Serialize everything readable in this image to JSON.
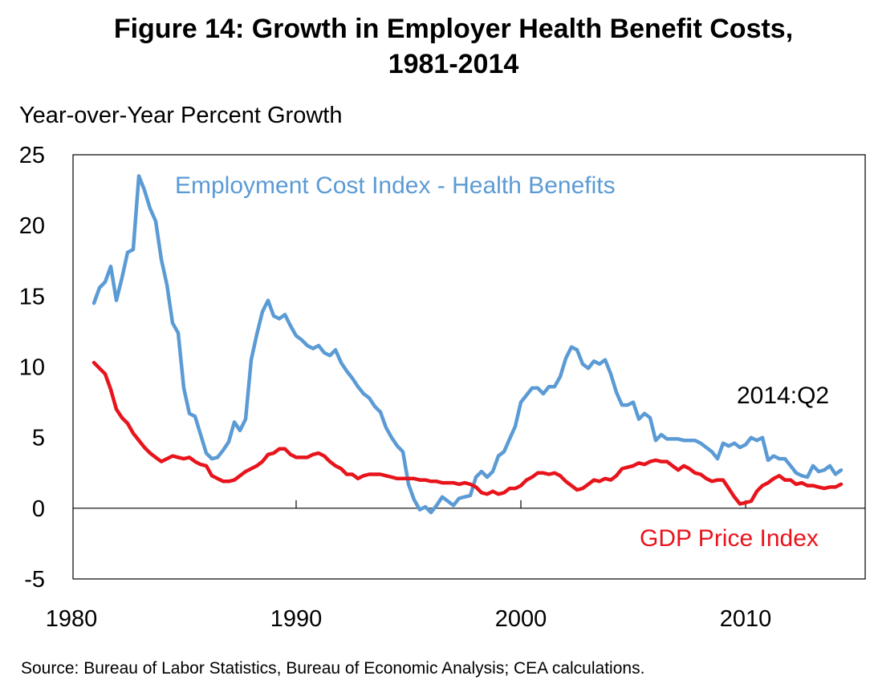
{
  "title_line1": "Figure 14: Growth in Employer Health Benefit Costs,",
  "title_line2": "1981-2014",
  "source": "Source: Bureau of Labor Statistics, Bureau of Economic Analysis; CEA calculations.",
  "colors": {
    "eci": "#5b9bd5",
    "gdp": "#e8141c"
  },
  "chart_data": {
    "type": "line",
    "ylabel": "Year-over-Year Percent Growth",
    "xlim": [
      1980,
      2015
    ],
    "ylim": [
      -5,
      25
    ],
    "x_ticks": [
      1980,
      1990,
      2000,
      2010
    ],
    "y_ticks": [
      25,
      20,
      15,
      10,
      5,
      0,
      -5
    ],
    "annotation": "2014:Q2",
    "series": [
      {
        "name": "Employment Cost Index - Health Benefits",
        "points": [
          [
            1981.0,
            14.5
          ],
          [
            1981.25,
            15.6
          ],
          [
            1981.5,
            16.0
          ],
          [
            1981.75,
            17.1
          ],
          [
            1982.0,
            14.7
          ],
          [
            1982.25,
            16.3
          ],
          [
            1982.5,
            18.1
          ],
          [
            1982.75,
            18.3
          ],
          [
            1983.0,
            23.5
          ],
          [
            1983.25,
            22.5
          ],
          [
            1983.5,
            21.2
          ],
          [
            1983.75,
            20.3
          ],
          [
            1984.0,
            17.6
          ],
          [
            1984.25,
            15.8
          ],
          [
            1984.5,
            13.1
          ],
          [
            1984.75,
            12.4
          ],
          [
            1985.0,
            8.5
          ],
          [
            1985.25,
            6.7
          ],
          [
            1985.5,
            6.5
          ],
          [
            1985.75,
            5.2
          ],
          [
            1986.0,
            3.9
          ],
          [
            1986.25,
            3.5
          ],
          [
            1986.5,
            3.6
          ],
          [
            1986.75,
            4.1
          ],
          [
            1987.0,
            4.7
          ],
          [
            1987.25,
            6.1
          ],
          [
            1987.5,
            5.5
          ],
          [
            1987.75,
            6.3
          ],
          [
            1988.0,
            10.5
          ],
          [
            1988.25,
            12.3
          ],
          [
            1988.5,
            13.9
          ],
          [
            1988.75,
            14.7
          ],
          [
            1989.0,
            13.6
          ],
          [
            1989.25,
            13.4
          ],
          [
            1989.5,
            13.7
          ],
          [
            1989.75,
            12.9
          ],
          [
            1990.0,
            12.2
          ],
          [
            1990.25,
            11.9
          ],
          [
            1990.5,
            11.5
          ],
          [
            1990.75,
            11.3
          ],
          [
            1991.0,
            11.5
          ],
          [
            1991.25,
            11.0
          ],
          [
            1991.5,
            10.8
          ],
          [
            1991.75,
            11.2
          ],
          [
            1992.0,
            10.3
          ],
          [
            1992.25,
            9.7
          ],
          [
            1992.5,
            9.2
          ],
          [
            1992.75,
            8.6
          ],
          [
            1993.0,
            8.1
          ],
          [
            1993.25,
            7.8
          ],
          [
            1993.5,
            7.2
          ],
          [
            1993.75,
            6.8
          ],
          [
            1994.0,
            5.7
          ],
          [
            1994.25,
            5.0
          ],
          [
            1994.5,
            4.4
          ],
          [
            1994.75,
            4.0
          ],
          [
            1995.0,
            1.7
          ],
          [
            1995.25,
            0.6
          ],
          [
            1995.5,
            -0.1
          ],
          [
            1995.75,
            0.1
          ],
          [
            1996.0,
            -0.3
          ],
          [
            1996.25,
            0.2
          ],
          [
            1996.5,
            0.8
          ],
          [
            1996.75,
            0.5
          ],
          [
            1997.0,
            0.2
          ],
          [
            1997.25,
            0.7
          ],
          [
            1997.5,
            0.8
          ],
          [
            1997.75,
            0.9
          ],
          [
            1998.0,
            2.2
          ],
          [
            1998.25,
            2.6
          ],
          [
            1998.5,
            2.2
          ],
          [
            1998.75,
            2.6
          ],
          [
            1999.0,
            3.7
          ],
          [
            1999.25,
            4.0
          ],
          [
            1999.5,
            4.9
          ],
          [
            1999.75,
            5.8
          ],
          [
            2000.0,
            7.5
          ],
          [
            2000.25,
            8.0
          ],
          [
            2000.5,
            8.5
          ],
          [
            2000.75,
            8.5
          ],
          [
            2001.0,
            8.1
          ],
          [
            2001.25,
            8.6
          ],
          [
            2001.5,
            8.6
          ],
          [
            2001.75,
            9.3
          ],
          [
            2002.0,
            10.6
          ],
          [
            2002.25,
            11.4
          ],
          [
            2002.5,
            11.2
          ],
          [
            2002.75,
            10.2
          ],
          [
            2003.0,
            9.9
          ],
          [
            2003.25,
            10.4
          ],
          [
            2003.5,
            10.2
          ],
          [
            2003.75,
            10.5
          ],
          [
            2004.0,
            9.5
          ],
          [
            2004.25,
            8.2
          ],
          [
            2004.5,
            7.3
          ],
          [
            2004.75,
            7.3
          ],
          [
            2005.0,
            7.5
          ],
          [
            2005.25,
            6.3
          ],
          [
            2005.5,
            6.7
          ],
          [
            2005.75,
            6.4
          ],
          [
            2006.0,
            4.8
          ],
          [
            2006.25,
            5.2
          ],
          [
            2006.5,
            4.9
          ],
          [
            2006.75,
            4.9
          ],
          [
            2007.0,
            4.9
          ],
          [
            2007.25,
            4.8
          ],
          [
            2007.5,
            4.8
          ],
          [
            2007.75,
            4.8
          ],
          [
            2008.0,
            4.6
          ],
          [
            2008.25,
            4.3
          ],
          [
            2008.5,
            4.0
          ],
          [
            2008.75,
            3.5
          ],
          [
            2009.0,
            4.6
          ],
          [
            2009.25,
            4.4
          ],
          [
            2009.5,
            4.6
          ],
          [
            2009.75,
            4.3
          ],
          [
            2010.0,
            4.5
          ],
          [
            2010.25,
            5.0
          ],
          [
            2010.5,
            4.8
          ],
          [
            2010.75,
            5.0
          ],
          [
            2011.0,
            3.4
          ],
          [
            2011.25,
            3.7
          ],
          [
            2011.5,
            3.5
          ],
          [
            2011.75,
            3.5
          ],
          [
            2012.0,
            3.0
          ],
          [
            2012.25,
            2.5
          ],
          [
            2012.5,
            2.3
          ],
          [
            2012.75,
            2.2
          ],
          [
            2013.0,
            3.0
          ],
          [
            2013.25,
            2.6
          ],
          [
            2013.5,
            2.7
          ],
          [
            2013.75,
            3.0
          ],
          [
            2014.0,
            2.4
          ],
          [
            2014.25,
            2.7
          ]
        ]
      },
      {
        "name": "GDP Price Index",
        "points": [
          [
            1981.0,
            10.3
          ],
          [
            1981.25,
            9.9
          ],
          [
            1981.5,
            9.5
          ],
          [
            1981.75,
            8.4
          ],
          [
            1982.0,
            7.0
          ],
          [
            1982.25,
            6.4
          ],
          [
            1982.5,
            6.0
          ],
          [
            1982.75,
            5.3
          ],
          [
            1983.0,
            4.8
          ],
          [
            1983.25,
            4.3
          ],
          [
            1983.5,
            3.9
          ],
          [
            1983.75,
            3.6
          ],
          [
            1984.0,
            3.3
          ],
          [
            1984.25,
            3.5
          ],
          [
            1984.5,
            3.7
          ],
          [
            1984.75,
            3.6
          ],
          [
            1985.0,
            3.5
          ],
          [
            1985.25,
            3.6
          ],
          [
            1985.5,
            3.3
          ],
          [
            1985.75,
            3.1
          ],
          [
            1986.0,
            3.0
          ],
          [
            1986.25,
            2.3
          ],
          [
            1986.5,
            2.1
          ],
          [
            1986.75,
            1.9
          ],
          [
            1987.0,
            1.9
          ],
          [
            1987.25,
            2.0
          ],
          [
            1987.5,
            2.3
          ],
          [
            1987.75,
            2.6
          ],
          [
            1988.0,
            2.8
          ],
          [
            1988.25,
            3.0
          ],
          [
            1988.5,
            3.3
          ],
          [
            1988.75,
            3.8
          ],
          [
            1989.0,
            3.9
          ],
          [
            1989.25,
            4.2
          ],
          [
            1989.5,
            4.2
          ],
          [
            1989.75,
            3.8
          ],
          [
            1990.0,
            3.6
          ],
          [
            1990.25,
            3.6
          ],
          [
            1990.5,
            3.6
          ],
          [
            1990.75,
            3.8
          ],
          [
            1991.0,
            3.9
          ],
          [
            1991.25,
            3.7
          ],
          [
            1991.5,
            3.3
          ],
          [
            1991.75,
            3.0
          ],
          [
            1992.0,
            2.8
          ],
          [
            1992.25,
            2.4
          ],
          [
            1992.5,
            2.4
          ],
          [
            1992.75,
            2.1
          ],
          [
            1993.0,
            2.3
          ],
          [
            1993.25,
            2.4
          ],
          [
            1993.5,
            2.4
          ],
          [
            1993.75,
            2.4
          ],
          [
            1994.0,
            2.3
          ],
          [
            1994.25,
            2.2
          ],
          [
            1994.5,
            2.1
          ],
          [
            1994.75,
            2.1
          ],
          [
            1995.0,
            2.1
          ],
          [
            1995.25,
            2.1
          ],
          [
            1995.5,
            2.0
          ],
          [
            1995.75,
            2.0
          ],
          [
            1996.0,
            1.9
          ],
          [
            1996.25,
            1.9
          ],
          [
            1996.5,
            1.8
          ],
          [
            1996.75,
            1.8
          ],
          [
            1997.0,
            1.8
          ],
          [
            1997.25,
            1.7
          ],
          [
            1997.5,
            1.8
          ],
          [
            1997.75,
            1.7
          ],
          [
            1998.0,
            1.5
          ],
          [
            1998.25,
            1.1
          ],
          [
            1998.5,
            1.0
          ],
          [
            1998.75,
            1.2
          ],
          [
            1999.0,
            1.0
          ],
          [
            1999.25,
            1.1
          ],
          [
            1999.5,
            1.4
          ],
          [
            1999.75,
            1.4
          ],
          [
            2000.0,
            1.6
          ],
          [
            2000.25,
            2.0
          ],
          [
            2000.5,
            2.2
          ],
          [
            2000.75,
            2.5
          ],
          [
            2001.0,
            2.5
          ],
          [
            2001.25,
            2.4
          ],
          [
            2001.5,
            2.5
          ],
          [
            2001.75,
            2.3
          ],
          [
            2002.0,
            1.9
          ],
          [
            2002.25,
            1.6
          ],
          [
            2002.5,
            1.3
          ],
          [
            2002.75,
            1.4
          ],
          [
            2003.0,
            1.7
          ],
          [
            2003.25,
            2.0
          ],
          [
            2003.5,
            1.9
          ],
          [
            2003.75,
            2.1
          ],
          [
            2004.0,
            2.0
          ],
          [
            2004.25,
            2.3
          ],
          [
            2004.5,
            2.8
          ],
          [
            2004.75,
            2.9
          ],
          [
            2005.0,
            3.0
          ],
          [
            2005.25,
            3.2
          ],
          [
            2005.5,
            3.1
          ],
          [
            2005.75,
            3.3
          ],
          [
            2006.0,
            3.4
          ],
          [
            2006.25,
            3.3
          ],
          [
            2006.5,
            3.3
          ],
          [
            2006.75,
            3.0
          ],
          [
            2007.0,
            2.7
          ],
          [
            2007.25,
            3.0
          ],
          [
            2007.5,
            2.8
          ],
          [
            2007.75,
            2.5
          ],
          [
            2008.0,
            2.4
          ],
          [
            2008.25,
            2.1
          ],
          [
            2008.5,
            1.9
          ],
          [
            2008.75,
            2.0
          ],
          [
            2009.0,
            2.0
          ],
          [
            2009.25,
            1.4
          ],
          [
            2009.5,
            0.8
          ],
          [
            2009.75,
            0.3
          ],
          [
            2010.0,
            0.4
          ],
          [
            2010.25,
            0.5
          ],
          [
            2010.5,
            1.2
          ],
          [
            2010.75,
            1.6
          ],
          [
            2011.0,
            1.8
          ],
          [
            2011.25,
            2.1
          ],
          [
            2011.5,
            2.3
          ],
          [
            2011.75,
            2.0
          ],
          [
            2012.0,
            2.0
          ],
          [
            2012.25,
            1.7
          ],
          [
            2012.5,
            1.8
          ],
          [
            2012.75,
            1.6
          ],
          [
            2013.0,
            1.6
          ],
          [
            2013.25,
            1.5
          ],
          [
            2013.5,
            1.4
          ],
          [
            2013.75,
            1.5
          ],
          [
            2014.0,
            1.5
          ],
          [
            2014.25,
            1.7
          ]
        ]
      }
    ]
  }
}
